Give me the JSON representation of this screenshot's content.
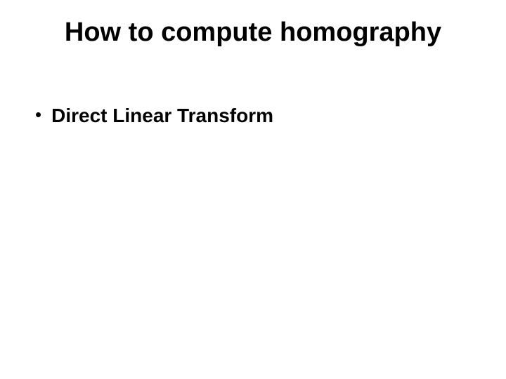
{
  "slide": {
    "title": "How to compute homography",
    "title_fontsize": 38,
    "title_fontweight": "bold",
    "title_color": "#000000",
    "bullets": [
      {
        "marker": "•",
        "text": "Direct Linear Transform"
      }
    ],
    "bullet_fontsize": 28,
    "bullet_fontweight": "bold",
    "bullet_color": "#000000",
    "background_color": "#ffffff"
  }
}
